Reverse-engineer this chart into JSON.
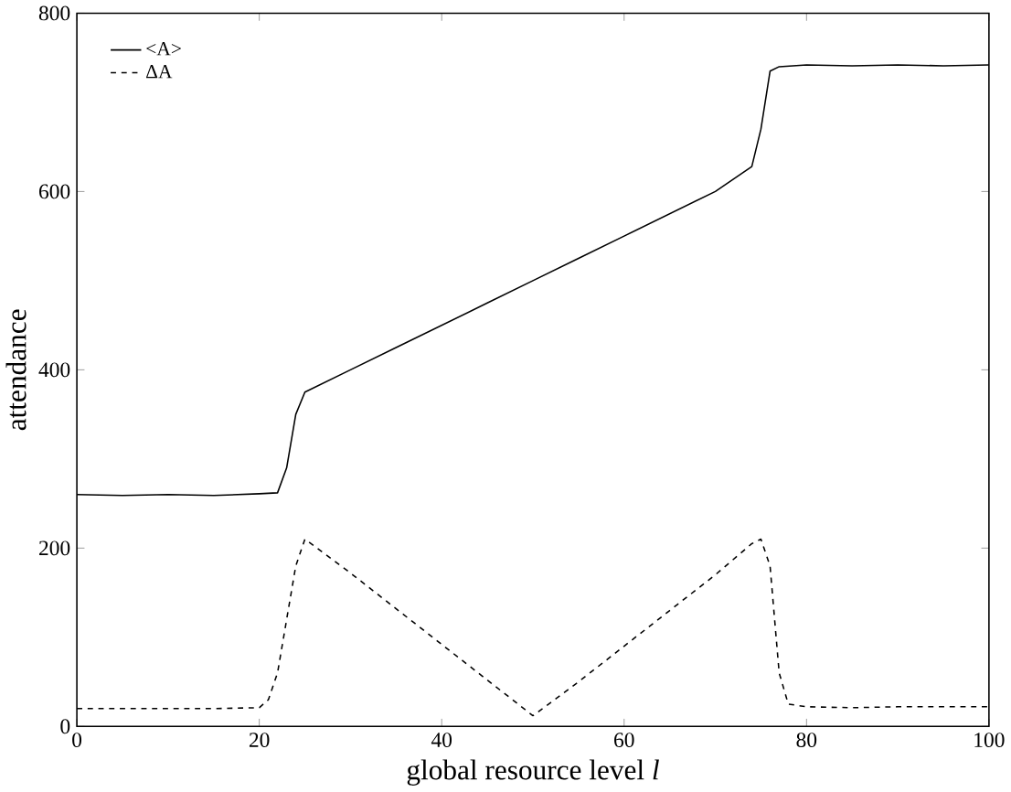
{
  "chart_data": {
    "type": "line",
    "xlabel": "global resource level *l*",
    "ylabel": "attendance",
    "xlim": [
      0,
      100
    ],
    "ylim": [
      0,
      800
    ],
    "xticks": [
      0,
      20,
      40,
      60,
      80,
      100
    ],
    "yticks": [
      0,
      200,
      400,
      600,
      800
    ],
    "legend": "top left",
    "grid": false,
    "marker": "none",
    "series": [
      {
        "name": "<A>",
        "color": "#000000",
        "line_style": "solid",
        "x": [
          0,
          5,
          10,
          15,
          20,
          22,
          23,
          24,
          25,
          30,
          35,
          40,
          45,
          50,
          55,
          60,
          65,
          70,
          74,
          75,
          76,
          77,
          80,
          85,
          90,
          95,
          100
        ],
        "values": [
          260,
          259,
          260,
          259,
          261,
          262,
          290,
          350,
          375,
          400,
          425,
          450,
          475,
          500,
          525,
          550,
          575,
          600,
          628,
          670,
          735,
          740,
          742,
          741,
          742,
          741,
          742
        ]
      },
      {
        "name": "ΔA",
        "color": "#000000",
        "line_style": "dashed",
        "x": [
          0,
          5,
          10,
          15,
          20,
          21,
          22,
          23,
          24,
          25,
          30,
          35,
          40,
          45,
          50,
          55,
          60,
          65,
          70,
          74,
          75,
          76,
          77,
          78,
          80,
          85,
          90,
          95,
          100
        ],
        "values": [
          20,
          20,
          20,
          20,
          21,
          30,
          60,
          120,
          180,
          210,
          172,
          132,
          92,
          52,
          12,
          50,
          90,
          130,
          170,
          205,
          210,
          180,
          60,
          25,
          22,
          21,
          22,
          22,
          22
        ]
      }
    ]
  }
}
